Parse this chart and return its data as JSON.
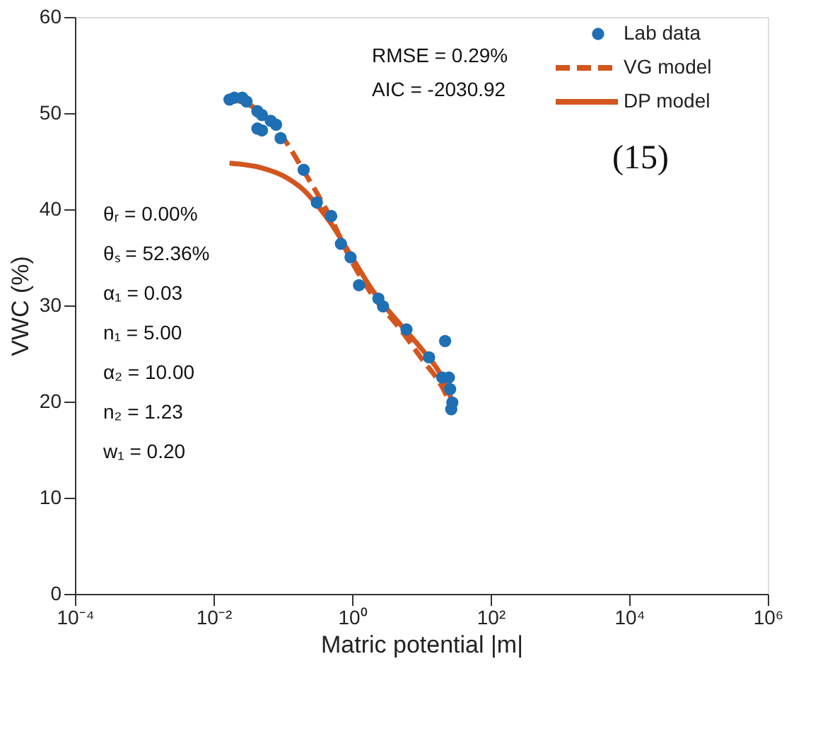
{
  "chart_data": {
    "type": "scatter",
    "xlabel": "Matric potential |m|",
    "ylabel": "VWC (%)",
    "log": "x",
    "xlim": [
      0.0001,
      1000000
    ],
    "xticks": [
      {
        "value": 0.0001,
        "label": "10⁻⁴"
      },
      {
        "value": 0.01,
        "label": "10⁻²"
      },
      {
        "value": 1,
        "label": "10⁰"
      },
      {
        "value": 100,
        "label": "10²"
      },
      {
        "value": 10000,
        "label": "10⁴"
      },
      {
        "value": 1000000,
        "label": "10⁶"
      }
    ],
    "ylim": [
      0,
      60
    ],
    "yticks": [
      0,
      10,
      20,
      30,
      40,
      50,
      60
    ],
    "grid": false,
    "legend": "top right",
    "annotations": [
      "RMSE = 0.29%",
      "AIC = -2030.92",
      "θᵣ = 0.00%",
      "θₛ = 52.36%",
      "α₁ = 0.03",
      "n₁ = 5.00",
      "α₂ = 10.00",
      "n₂ = 1.23",
      "w₁ = 0.20",
      "(15)"
    ],
    "series": [
      {
        "name": "Lab data",
        "marker": "circle",
        "color": "#1f6fb4",
        "x": [
          0.017,
          0.02,
          0.026,
          0.03,
          0.043,
          0.05,
          0.067,
          0.08,
          0.043,
          0.05,
          0.093,
          0.2,
          0.31,
          0.5,
          0.69,
          0.95,
          1.26,
          2.4,
          2.8,
          6.1,
          12.9,
          20,
          22,
          25,
          26,
          27,
          28
        ],
        "values": [
          51.4,
          51.6,
          51.6,
          51.2,
          50.2,
          49.8,
          49.2,
          48.8,
          48.4,
          48.2,
          47.4,
          44.1,
          40.7,
          39.3,
          36.4,
          35.0,
          32.1,
          30.7,
          29.9,
          27.5,
          24.6,
          22.5,
          26.3,
          22.5,
          21.3,
          19.2,
          19.9
        ]
      },
      {
        "name": "VG model",
        "type": "line",
        "line_style": "dashed",
        "marker": "none",
        "color": "#d2561e",
        "x": [
          0.017,
          0.05,
          0.1,
          0.2,
          0.5,
          1,
          2,
          5,
          10,
          20,
          27
        ],
        "values": [
          51.5,
          50.0,
          47.5,
          44.0,
          39.0,
          34.5,
          31.0,
          27.5,
          24.5,
          21.5,
          19.6
        ]
      },
      {
        "name": "DP model",
        "type": "line",
        "line_style": "solid",
        "marker": "none",
        "color": "#d2561e",
        "x": [
          0.017,
          0.05,
          0.1,
          0.2,
          0.35,
          0.5,
          1,
          2,
          5,
          10,
          20,
          27
        ],
        "values": [
          44.8,
          44.3,
          43.5,
          42.0,
          40.0,
          38.5,
          35.0,
          31.5,
          28.0,
          25.5,
          22.5,
          20.3
        ]
      }
    ]
  }
}
